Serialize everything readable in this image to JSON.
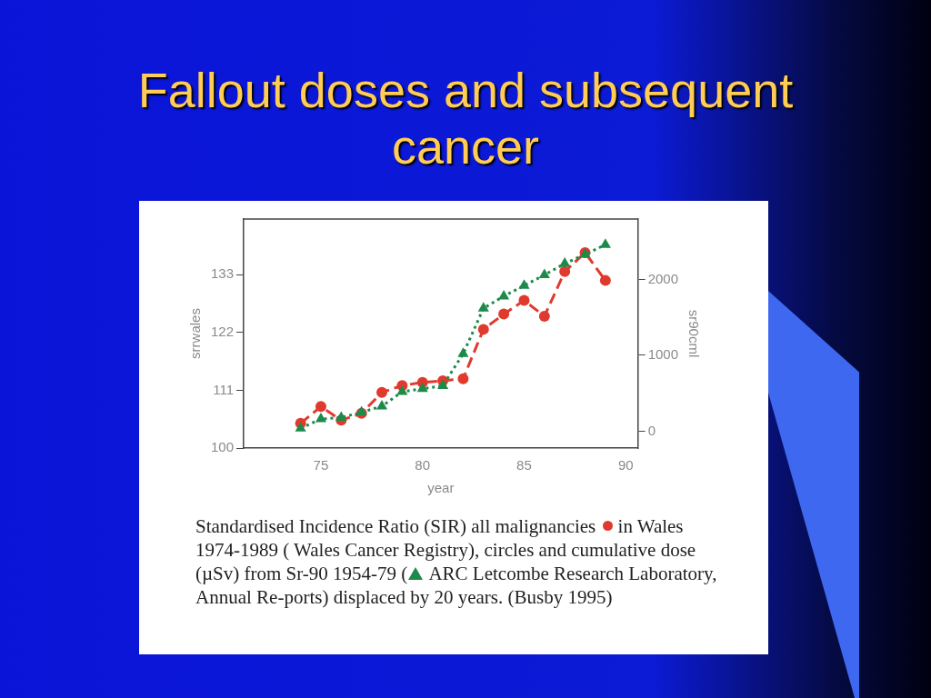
{
  "chart_data": {
    "type": "line",
    "title": "Fallout doses and subsequent cancer",
    "xlabel": "year",
    "ylabel": "srrwales",
    "y2label": "sr90cml",
    "x": [
      74,
      75,
      76,
      77,
      78,
      79,
      80,
      81,
      82,
      83,
      84,
      85,
      86,
      87,
      88,
      89
    ],
    "series": [
      {
        "color": "#e03a2e",
        "marker": "circle",
        "line_style": "dashed",
        "values": [
          104.7,
          107.9,
          105.3,
          106.6,
          110.6,
          111.9,
          112.5,
          112.8,
          113.2,
          122.6,
          125.5,
          128.1,
          125.1,
          133.6,
          137.2,
          131.9
        ]
      },
      {
        "color": "#1e8a4a",
        "marker": "triangle",
        "line_style": "dotted",
        "axis": "y2",
        "values": [
          40,
          160,
          180,
          250,
          330,
          520,
          560,
          600,
          1020,
          1620,
          1780,
          1920,
          2060,
          2210,
          2330,
          2460
        ]
      }
    ],
    "xlim": [
      71.2,
      90.6
    ],
    "xticks": [
      75,
      80,
      85,
      90
    ],
    "ylim": [
      100,
      143.6
    ],
    "yticks": [
      100,
      111,
      122,
      133
    ],
    "y2lim": [
      -222,
      2797
    ],
    "y2ticks": [
      0,
      1000,
      2000
    ],
    "grid": false,
    "legend": false,
    "annotations": [
      "Standardised Incidence Ratio (SIR) all malignancies",
      "in Wales 1974-1989 ( Wales Cancer Registry), circles and cumulative dose (µSv) from Sr-90 1954-79 (",
      "ARC Letcombe Research Laboratory, Annual Re-ports) displaced by 20 years. (Busby 1995)"
    ]
  }
}
